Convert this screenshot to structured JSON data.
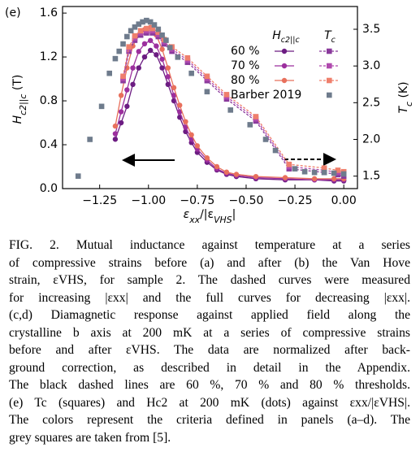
{
  "chart_data": {
    "type": "line",
    "panel_label": "(e)",
    "x": [
      -1.17,
      -1.14,
      -1.11,
      -1.08,
      -1.05,
      -1.02,
      -0.99,
      -0.96,
      -0.93,
      -0.9,
      -0.87,
      -0.84,
      -0.81,
      -0.78,
      -0.75,
      -0.7,
      -0.65,
      -0.6,
      -0.55,
      -0.45,
      -0.3,
      -0.15,
      -0.05,
      0.0
    ],
    "xlabel": [
      "ε",
      "xx",
      "/|ε",
      "VHS",
      "|"
    ],
    "ylabel": [
      "H",
      "c2||c",
      " (T)"
    ],
    "y2label": [
      "T",
      "c",
      " (K)"
    ],
    "legend_headers": [
      [
        "H",
        "c2||c"
      ],
      [
        "T",
        "c"
      ]
    ],
    "xlim": [
      -1.44,
      0.07
    ],
    "ylim": [
      0,
      1.66
    ],
    "y2lim": [
      1.33,
      3.81
    ],
    "xticks": [
      {
        "value": -1.25,
        "label": "−1.25"
      },
      {
        "value": -1.0,
        "label": "−1.00"
      },
      {
        "value": -0.75,
        "label": "−0.75"
      },
      {
        "value": -0.5,
        "label": "−0.50"
      },
      {
        "value": -0.25,
        "label": "−0.25"
      },
      {
        "value": 0,
        "label": "0.00"
      }
    ],
    "yticks": [
      {
        "value": 0,
        "label": "0.0"
      },
      0.4,
      0.8,
      1.2,
      1.6
    ],
    "y2ticks": [
      1.5,
      {
        "value": 2,
        "label": "2.0"
      },
      2.5,
      {
        "value": 3,
        "label": "3.0"
      },
      3.5
    ],
    "series": [
      {
        "name": "60 %",
        "color": "#6c1c82",
        "marker": "circle",
        "line": "solid",
        "values": [
          0.45,
          0.6,
          0.75,
          0.95,
          1.1,
          1.2,
          1.26,
          1.22,
          1.1,
          0.95,
          0.8,
          0.65,
          0.52,
          0.42,
          0.33,
          0.24,
          0.17,
          0.13,
          0.11,
          0.09,
          0.08,
          0.08,
          0.07,
          0.07
        ]
      },
      {
        "name": "70 %",
        "color": "#9c2f9e",
        "marker": "circle",
        "line": "solid",
        "values": [
          0.5,
          0.7,
          0.9,
          1.1,
          1.25,
          1.32,
          1.35,
          1.3,
          1.18,
          1.02,
          0.85,
          0.7,
          0.56,
          0.45,
          0.36,
          0.26,
          0.18,
          0.14,
          0.12,
          0.1,
          0.09,
          0.08,
          0.08,
          0.08
        ]
      },
      {
        "name": "80 %",
        "color": "#e8705c",
        "marker": "circle",
        "line": "solid",
        "values": [
          0.57,
          0.85,
          1.1,
          1.3,
          1.4,
          1.45,
          1.47,
          1.4,
          1.27,
          1.1,
          0.92,
          0.76,
          0.61,
          0.49,
          0.39,
          0.28,
          0.2,
          0.15,
          0.13,
          0.11,
          0.1,
          0.09,
          0.09,
          0.09
        ]
      },
      {
        "color": "#8a3a9c",
        "marker": "square",
        "line": "dashed",
        "axis": "y2",
        "x": [
          -1.13,
          -1.1,
          -1.07,
          -1.04,
          -1.01,
          -0.98,
          -0.95,
          -0.92,
          -0.88,
          -0.8,
          -0.7,
          -0.6,
          -0.45,
          -0.28,
          -0.1,
          -0.03,
          0.0
        ],
        "values": [
          2.8,
          3.2,
          3.35,
          3.42,
          3.45,
          3.45,
          3.4,
          3.3,
          3.2,
          3.05,
          2.8,
          2.55,
          2.25,
          1.6,
          1.55,
          1.52,
          1.5
        ]
      },
      {
        "color": "#b04aae",
        "marker": "square",
        "line": "dashed",
        "axis": "y2",
        "x": [
          -1.13,
          -1.1,
          -1.07,
          -1.04,
          -1.01,
          -0.98,
          -0.95,
          -0.92,
          -0.88,
          -0.8,
          -0.7,
          -0.6,
          -0.45,
          -0.28,
          -0.1,
          -0.03,
          0.0
        ],
        "values": [
          2.83,
          3.23,
          3.38,
          3.45,
          3.48,
          3.48,
          3.43,
          3.33,
          3.23,
          3.08,
          2.83,
          2.58,
          2.28,
          1.63,
          1.58,
          1.55,
          1.53
        ]
      },
      {
        "color": "#ef7f6c",
        "marker": "square",
        "line": "dashed",
        "axis": "y2",
        "x": [
          -1.13,
          -1.1,
          -1.07,
          -1.04,
          -1.01,
          -0.98,
          -0.95,
          -0.92,
          -0.88,
          -0.8,
          -0.7,
          -0.6,
          -0.45,
          -0.28,
          -0.1,
          -0.03,
          0.0
        ],
        "values": [
          2.86,
          3.26,
          3.41,
          3.48,
          3.51,
          3.51,
          3.46,
          3.36,
          3.26,
          3.11,
          2.86,
          2.61,
          2.31,
          1.66,
          1.61,
          1.58,
          1.56
        ]
      },
      {
        "name": "Barber 2019",
        "color": "#6e7b8c",
        "marker": "square",
        "line": "none",
        "axis": "y2",
        "x": [
          -1.36,
          -1.3,
          -1.24,
          -1.2,
          -1.17,
          -1.15,
          -1.13,
          -1.11,
          -1.09,
          -1.07,
          -1.05,
          -1.03,
          -1.01,
          -0.99,
          -0.97,
          -0.95,
          -0.93,
          -0.91,
          -0.89,
          -0.85,
          -0.78,
          -0.7,
          -0.58,
          -0.48,
          -0.4,
          -0.35,
          -0.25,
          -0.2,
          -0.15,
          -0.1,
          -0.05,
          0.0
        ],
        "values": [
          1.5,
          2.0,
          2.45,
          2.9,
          3.1,
          3.2,
          3.3,
          3.4,
          3.48,
          3.53,
          3.57,
          3.6,
          3.62,
          3.6,
          3.56,
          3.5,
          3.42,
          3.35,
          3.25,
          3.12,
          2.9,
          2.65,
          2.4,
          2.2,
          2.0,
          1.85,
          1.6,
          1.56,
          1.55,
          1.55,
          1.54,
          1.53
        ]
      }
    ]
  },
  "caption": {
    "lines": [
      "FIG. 2. Mutual inductance against temperature at a series",
      "of compressive strains before (a) and after (b) the Van Hove",
      "strain, εVHS, for sample 2. The dashed curves were measured",
      "for increasing |εxx| and the full curves for decreasing |εxx|.",
      "(c,d) Diamagnetic response against applied field along the",
      "crystalline b axis at 200 mK at a series of compressive strains",
      "before and after εVHS. The data are normalized after back-",
      "ground correction, as described in detail in the Appendix.",
      "The black dashed lines are 60 %, 70 % and 80 % thresholds.",
      "(e) Tc (squares) and Hc2 at 200 mK (dots) against εxx/|εVHS|.",
      "The colors represent the criteria defined in panels (a–d). The",
      "grey squares are taken from [5]."
    ]
  }
}
